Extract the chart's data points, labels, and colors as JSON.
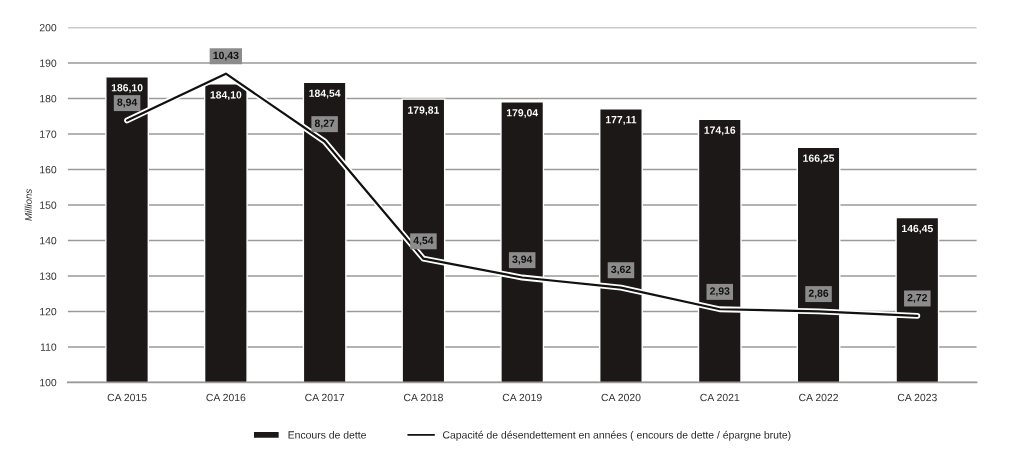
{
  "chart_data": {
    "type": "bar",
    "ylabel": "Millions",
    "categories": [
      "CA 2015",
      "CA 2016",
      "CA 2017",
      "CA 2018",
      "CA 2019",
      "CA 2020",
      "CA 2021",
      "CA 2022",
      "CA 2023"
    ],
    "series": [
      {
        "name": "Encours de dette",
        "color": "#1c1818",
        "values": [
          186.1,
          184.1,
          184.54,
          179.81,
          179.04,
          177.11,
          174.16,
          166.25,
          146.45
        ],
        "value_labels": [
          "186,10",
          "184,10",
          "184,54",
          "179,81",
          "179,04",
          "177,11",
          "174,16",
          "166,25",
          "146,45"
        ]
      },
      {
        "name": "Capacité de désendettement en années ( encours de dette / épargne brute)",
        "type": "line",
        "axis": "y2",
        "color": "#111111",
        "values": [
          8.94,
          10.43,
          8.27,
          4.54,
          3.94,
          3.62,
          2.93,
          2.86,
          2.72
        ],
        "value_labels": [
          "8,94",
          "10,43",
          "8,27",
          "4,54",
          "3,94",
          "3,62",
          "2,93",
          "2,86",
          "2,72"
        ]
      }
    ],
    "ylim": [
      100,
      200
    ],
    "yticks": [
      100,
      110,
      120,
      130,
      140,
      150,
      160,
      170,
      180,
      190,
      200
    ],
    "y2lim": [
      0.6,
      11.9
    ],
    "grid": "y",
    "legend": "bottom",
    "marker": "none",
    "line_style": "solid"
  }
}
